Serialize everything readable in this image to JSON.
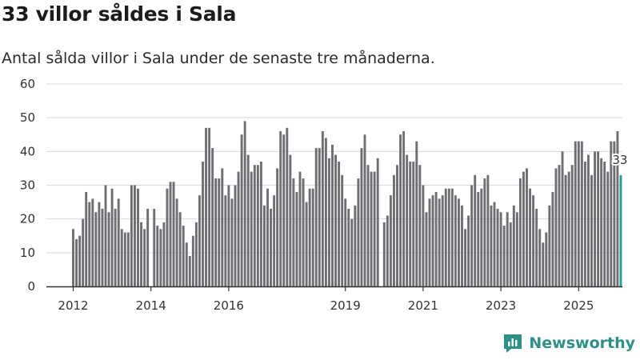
{
  "title": "33 villor såldes i Sala",
  "subtitle": "Antal sålda villor i Sala under de senaste tre månaderna.",
  "brand": {
    "name": "Newsworthy",
    "icon": "newsworthy-logo-icon",
    "color": "#2e8f86"
  },
  "colors": {
    "bar": "#6e6e73",
    "highlight": "#2a9d94",
    "grid": "#d9d9d9",
    "axis": "#333333"
  },
  "chart_data": {
    "type": "bar",
    "title": "33 villor såldes i Sala",
    "subtitle": "Antal sålda villor i Sala under de senaste tre månaderna.",
    "xlabel": "",
    "ylabel": "",
    "ylim": [
      0,
      60
    ],
    "yticks": [
      0,
      10,
      20,
      30,
      40,
      50,
      60
    ],
    "grid": true,
    "x_tick_labels": [
      {
        "label": "2012",
        "index": 0
      },
      {
        "label": "2014",
        "index": 24
      },
      {
        "label": "2016",
        "index": 48
      },
      {
        "label": "2019",
        "index": 84
      },
      {
        "label": "2021",
        "index": 108
      },
      {
        "label": "2023",
        "index": 132
      },
      {
        "label": "2025",
        "index": 156
      }
    ],
    "highlight_label": "33",
    "values": [
      17,
      14,
      15,
      20,
      28,
      25,
      26,
      22,
      25,
      23,
      30,
      22,
      29,
      23,
      26,
      17,
      16,
      16,
      30,
      30,
      29,
      19,
      17,
      23,
      null,
      23,
      18,
      17,
      19,
      29,
      31,
      31,
      26,
      22,
      18,
      13,
      9,
      15,
      19,
      27,
      37,
      47,
      47,
      41,
      32,
      32,
      35,
      27,
      30,
      26,
      30,
      34,
      45,
      49,
      39,
      34,
      36,
      36,
      37,
      24,
      29,
      23,
      27,
      35,
      46,
      45,
      47,
      39,
      32,
      28,
      34,
      32,
      25,
      29,
      29,
      41,
      41,
      46,
      44,
      38,
      42,
      39,
      37,
      33,
      26,
      23,
      20,
      24,
      32,
      41,
      45,
      36,
      34,
      34,
      38,
      null,
      19,
      21,
      27,
      33,
      36,
      45,
      46,
      39,
      37,
      37,
      43,
      36,
      30,
      22,
      26,
      27,
      28,
      26,
      27,
      29,
      29,
      29,
      27,
      26,
      24,
      17,
      21,
      30,
      33,
      28,
      29,
      32,
      33,
      24,
      25,
      23,
      22,
      18,
      22,
      19,
      24,
      22,
      32,
      34,
      35,
      29,
      27,
      23,
      17,
      13,
      16,
      24,
      28,
      35,
      36,
      40,
      33,
      34,
      36,
      43,
      43,
      43,
      37,
      39,
      33,
      40,
      40,
      38,
      37,
      34,
      43,
      43,
      46,
      33
    ]
  }
}
